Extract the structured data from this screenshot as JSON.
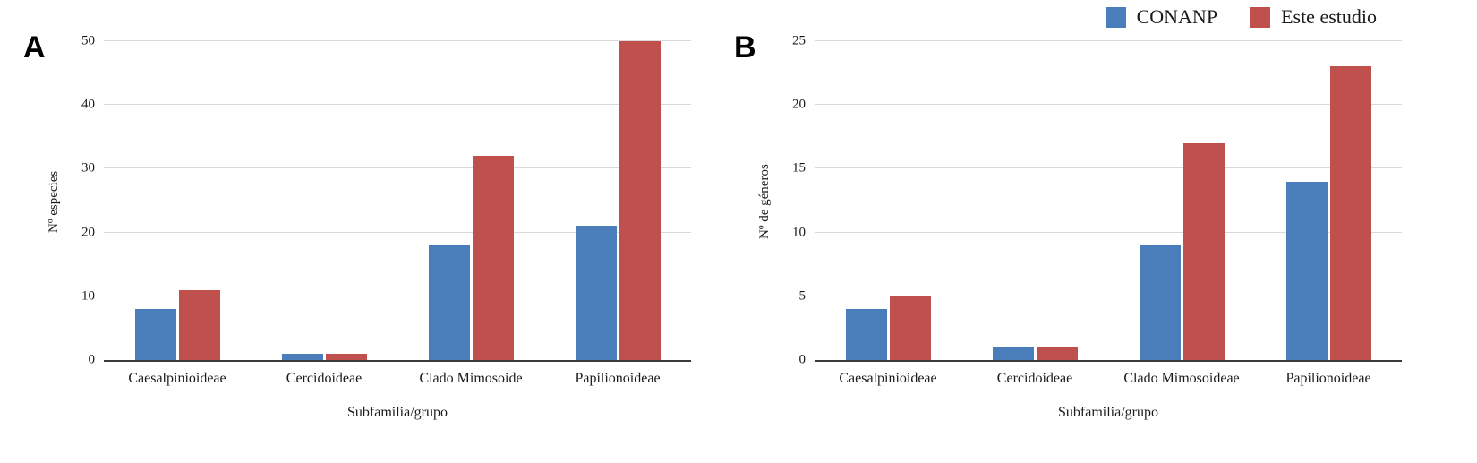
{
  "legend": {
    "items": [
      {
        "label": "CONANP",
        "color": "#4a7ebb"
      },
      {
        "label": "Este estudio",
        "color": "#c0504d"
      }
    ],
    "position": "top-right"
  },
  "chart_data": [
    {
      "type": "bar",
      "panel_label": "A",
      "title": "",
      "ylabel": "Nº especies",
      "xlabel": "Subfamilia/grupo",
      "categories": [
        "Caesalpinioideae",
        "Cercidoideae",
        "Clado Mimosoide",
        "Papilionoideae"
      ],
      "series": [
        {
          "name": "CONANP",
          "color": "#4a7ebb",
          "values": [
            8,
            1,
            18,
            21
          ]
        },
        {
          "name": "Este estudio",
          "color": "#c0504d",
          "values": [
            11,
            1,
            32,
            50
          ]
        }
      ],
      "ylim": [
        0,
        50
      ],
      "yticks": [
        0,
        10,
        20,
        30,
        40,
        50
      ],
      "grid": true,
      "legend_position": "top-right"
    },
    {
      "type": "bar",
      "panel_label": "B",
      "title": "",
      "ylabel": "Nº de géneros",
      "xlabel": "Subfamilia/grupo",
      "categories": [
        "Caesalpinioideae",
        "Cercidoideae",
        "Clado Mimosoideae",
        "Papilionoideae"
      ],
      "series": [
        {
          "name": "CONANP",
          "color": "#4a7ebb",
          "values": [
            4,
            1,
            9,
            14
          ]
        },
        {
          "name": "Este estudio",
          "color": "#c0504d",
          "values": [
            5,
            1,
            17,
            23
          ]
        }
      ],
      "ylim": [
        0,
        25
      ],
      "yticks": [
        0,
        5,
        10,
        15,
        20,
        25
      ],
      "grid": true,
      "legend_position": "top-right"
    }
  ]
}
